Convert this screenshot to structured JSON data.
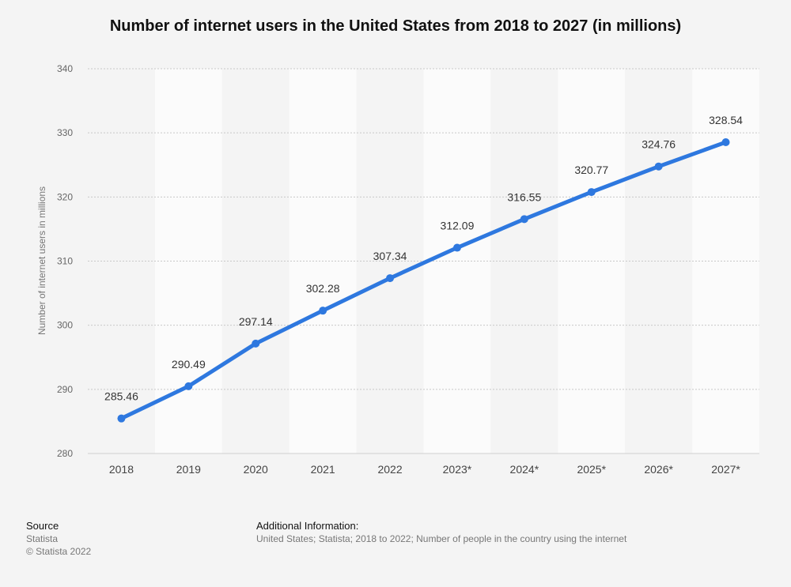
{
  "chart_data": {
    "type": "line",
    "title": "Number of internet users in the United States from 2018 to 2027 (in millions)",
    "categories": [
      "2018",
      "2019",
      "2020",
      "2021",
      "2022",
      "2023*",
      "2024*",
      "2025*",
      "2026*",
      "2027*"
    ],
    "series": [
      {
        "values": [
          285.46,
          290.49,
          297.14,
          302.28,
          307.34,
          312.09,
          316.55,
          320.77,
          324.76,
          328.54
        ]
      }
    ],
    "value_labels": [
      "285.46",
      "290.49",
      "297.14",
      "302.28",
      "307.34",
      "312.09",
      "316.55",
      "320.77",
      "324.76",
      "328.54"
    ],
    "ylabel": "Number of internet users in millions",
    "ylim": [
      280,
      340
    ],
    "yticks": [
      280,
      290,
      300,
      310,
      320,
      330,
      340
    ],
    "grid": true,
    "line_color": "#2e78df"
  },
  "footer": {
    "source_heading": "Source",
    "source_name": "Statista",
    "copyright": "© Statista 2022",
    "info_heading": "Additional Information:",
    "info_text": "United States; Statista; 2018 to 2022; Number of people in the country using the internet"
  }
}
